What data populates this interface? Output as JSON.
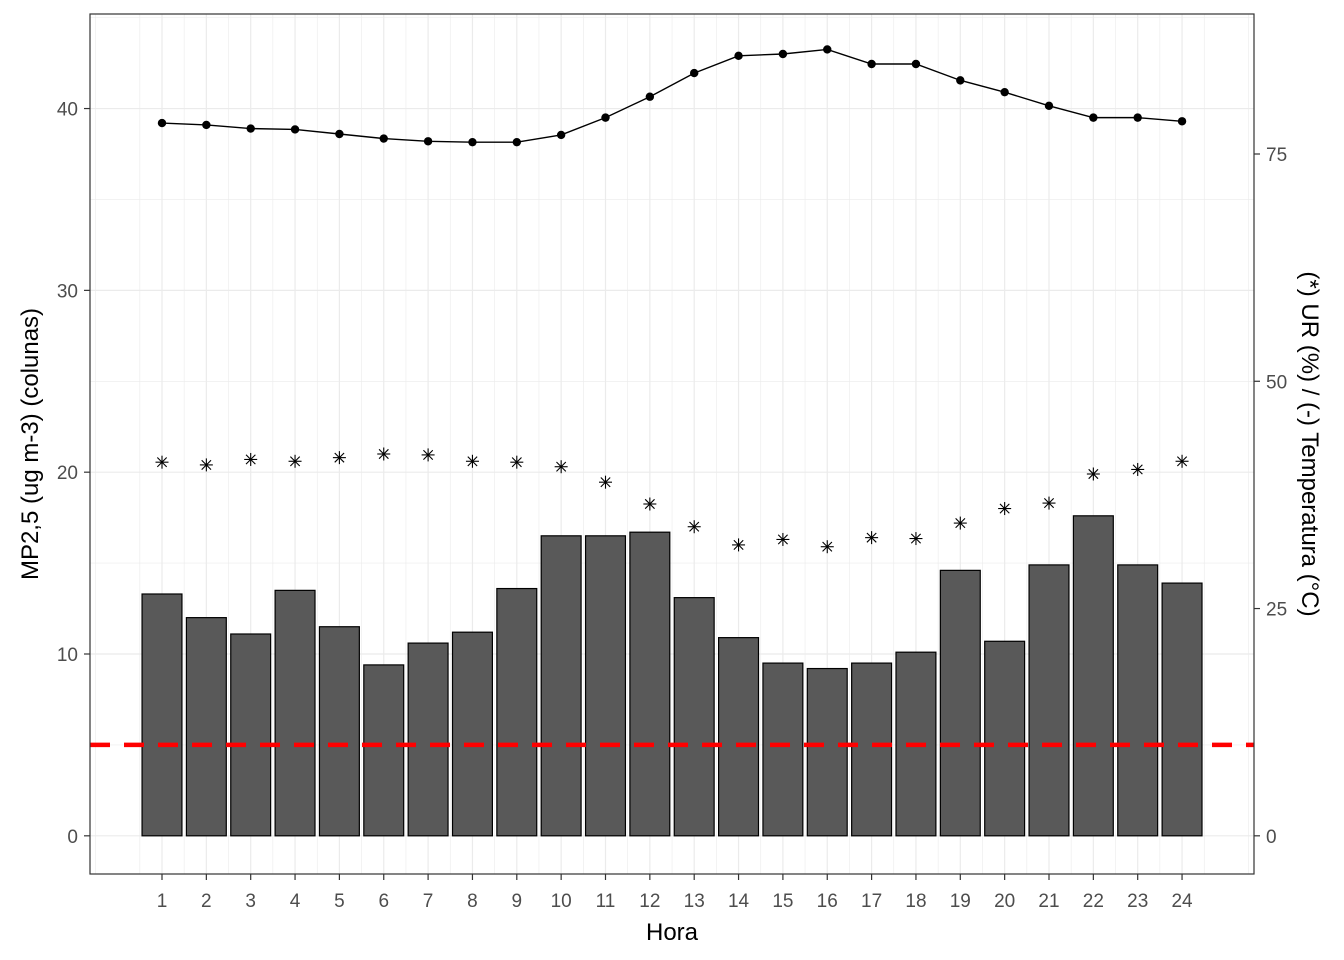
{
  "chart_data": {
    "type": "bar",
    "xlabel": "Hora",
    "ylabel_left": "MP2,5 (ug m-3) (colunas)",
    "ylabel_right": "(*) UR (%) / (-) Temperatura (°C)",
    "categories": [
      "1",
      "2",
      "3",
      "4",
      "5",
      "6",
      "7",
      "8",
      "9",
      "10",
      "11",
      "12",
      "13",
      "14",
      "15",
      "16",
      "17",
      "18",
      "19",
      "20",
      "21",
      "22",
      "23",
      "24"
    ],
    "ylim_left": [
      -2.1,
      45.2
    ],
    "ylim_right": [
      -4.2,
      90.4
    ],
    "yticks_left": [
      "0",
      "10",
      "20",
      "30",
      "40"
    ],
    "yticks_right": [
      "0",
      "25",
      "50",
      "75"
    ],
    "grid": true,
    "reference_line": {
      "y": 5,
      "color": "#ff0000",
      "style": "dashed"
    },
    "colors": {
      "bar_fill": "#595959",
      "bar_stroke": "#000000",
      "line": "#000000",
      "reference": "#ff0000",
      "grid": "#ebebeb"
    },
    "series": [
      {
        "type": "bar",
        "axis": "left",
        "values": [
          13.3,
          12.0,
          11.1,
          13.5,
          11.5,
          9.4,
          10.6,
          11.2,
          13.6,
          16.5,
          16.5,
          16.7,
          13.1,
          10.9,
          9.5,
          9.2,
          9.5,
          10.1,
          14.6,
          10.7,
          14.9,
          17.6,
          14.9,
          13.9
        ]
      },
      {
        "type": "scatter",
        "marker": "asterisk",
        "axis": "right",
        "values": [
          41.1,
          40.8,
          41.4,
          41.2,
          41.6,
          42.0,
          41.9,
          41.2,
          41.1,
          40.6,
          38.9,
          36.5,
          34.0,
          32.0,
          32.6,
          31.8,
          32.8,
          32.7,
          34.4,
          36.0,
          36.6,
          39.8,
          40.3,
          41.2
        ]
      },
      {
        "type": "line",
        "marker": "point",
        "axis": "right",
        "values": [
          78.4,
          78.2,
          77.8,
          77.7,
          77.2,
          76.7,
          76.4,
          76.3,
          76.3,
          77.1,
          79.0,
          81.3,
          83.9,
          85.8,
          86.0,
          86.5,
          84.9,
          84.9,
          83.1,
          81.8,
          80.3,
          79.0,
          79.0,
          78.6
        ]
      }
    ]
  }
}
